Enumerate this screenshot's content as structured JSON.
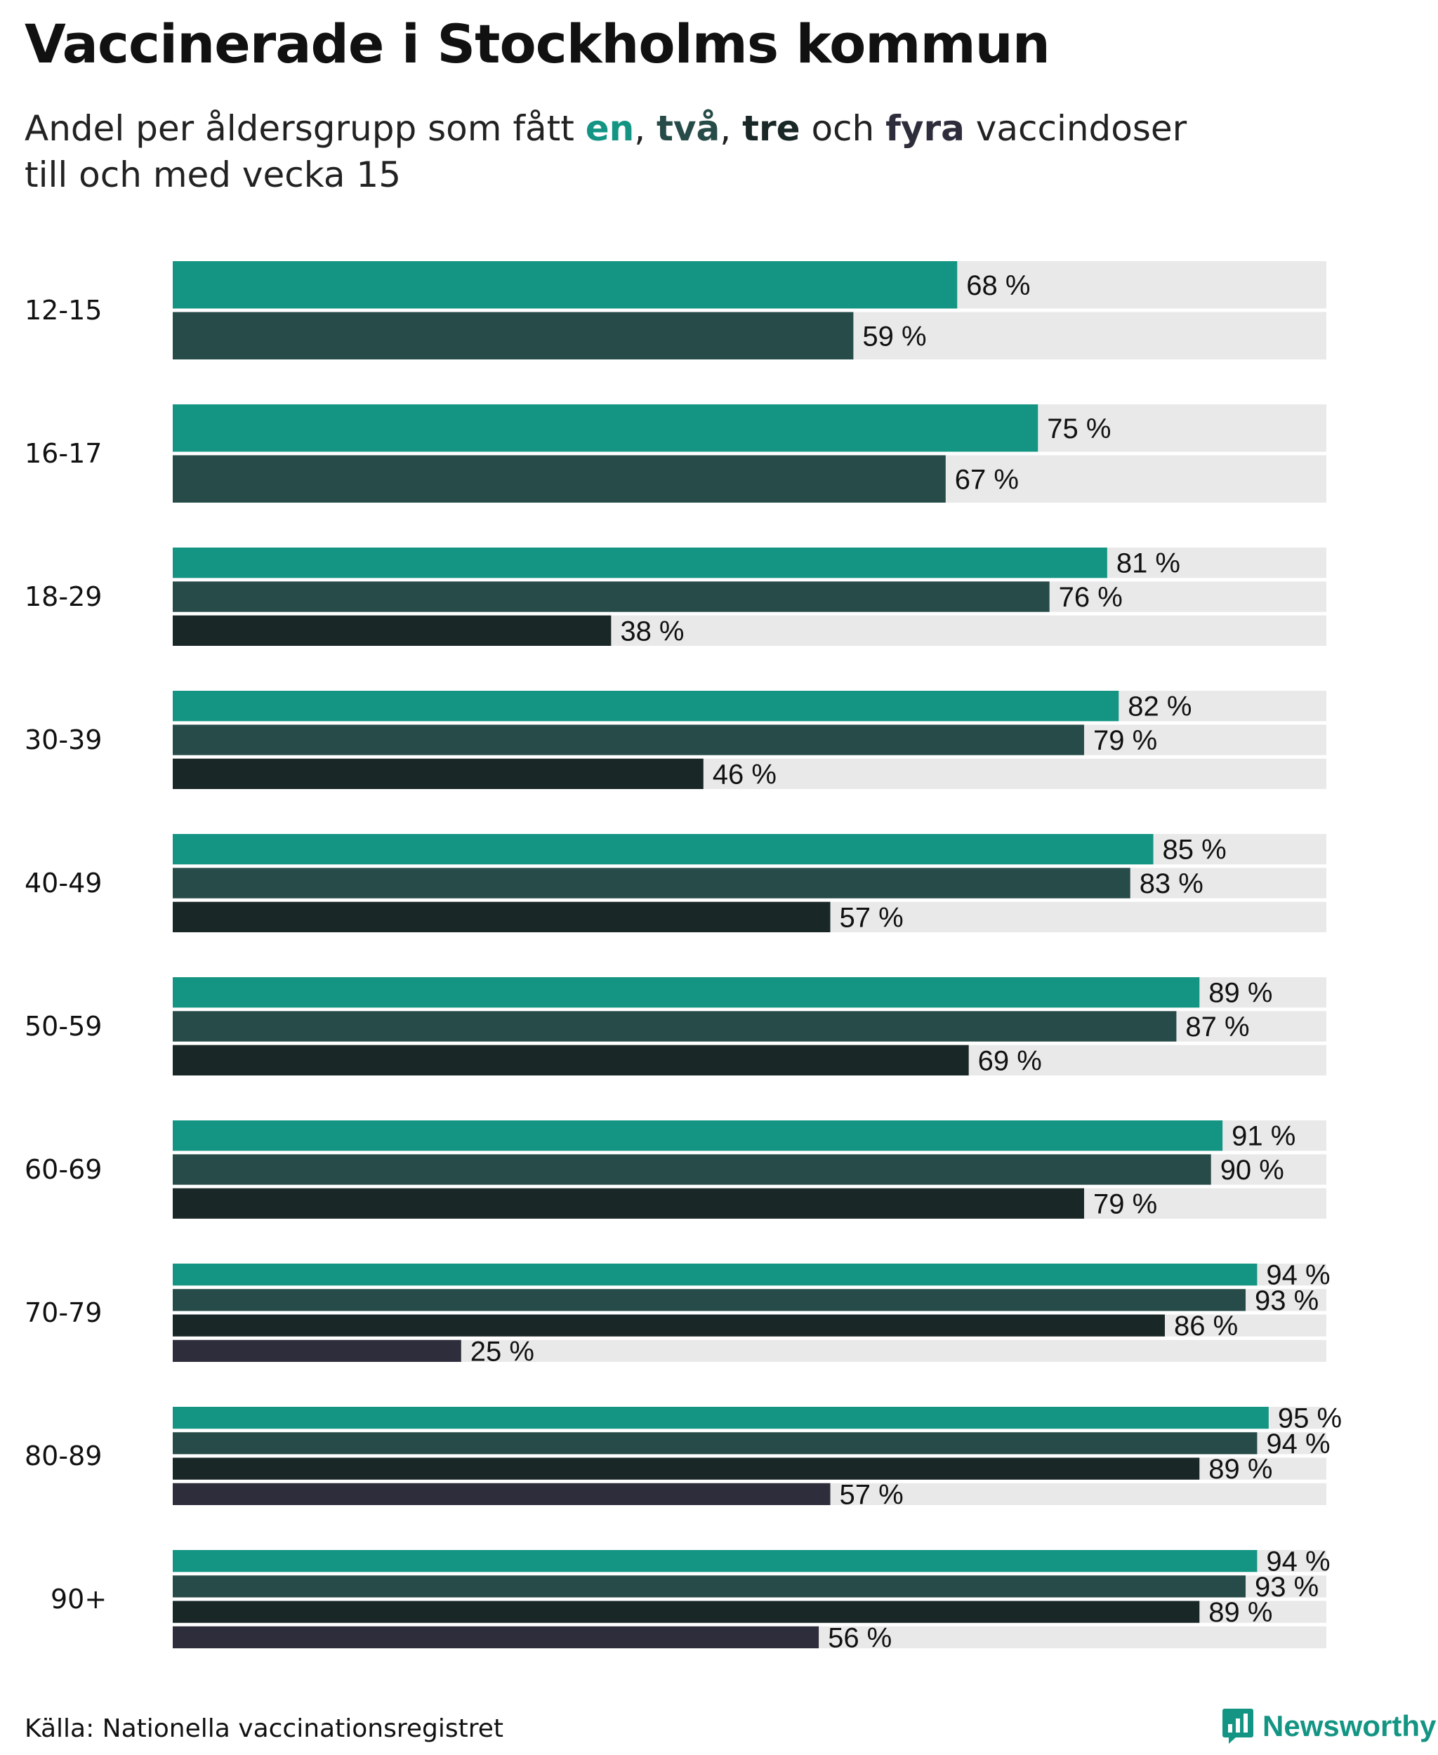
{
  "title": "Vaccinerade i Stockholms kommun",
  "subtitle": {
    "prefix": "Andel per åldersgrupp som fått ",
    "one": "en",
    "sep1": ", ",
    "two": "två",
    "sep2": ", ",
    "three": "tre",
    "mid": " och ",
    "four": "fyra",
    "suffix": " vaccindoser",
    "line2": "till och med vecka 15"
  },
  "colors": {
    "dose1": "#149584",
    "dose2": "#264b48",
    "dose3": "#192726",
    "dose4": "#2e2d3b",
    "track": "#e9e9e9",
    "brand": "#149584"
  },
  "chart_data": {
    "type": "bar",
    "orientation": "horizontal",
    "title": "Vaccinerade i Stockholms kommun",
    "xlim": [
      0,
      100
    ],
    "unit": "%",
    "series": [
      {
        "name": "en",
        "values": [
          68,
          75,
          81,
          82,
          85,
          89,
          91,
          94,
          95,
          94
        ]
      },
      {
        "name": "två",
        "values": [
          59,
          67,
          76,
          79,
          83,
          87,
          90,
          93,
          94,
          93
        ]
      },
      {
        "name": "tre",
        "values": [
          null,
          null,
          38,
          46,
          57,
          69,
          79,
          86,
          89,
          89
        ]
      },
      {
        "name": "fyra",
        "values": [
          null,
          null,
          null,
          null,
          null,
          null,
          null,
          25,
          57,
          56
        ]
      }
    ],
    "categories": [
      "12-15",
      "16-17",
      "18-29",
      "30-39",
      "40-49",
      "50-59",
      "60-69",
      "70-79",
      "80-89",
      "90+"
    ]
  },
  "source": "Källa: Nationella vaccinationsregistret",
  "logo": {
    "text": "Newsworthy",
    "icon": "bar-chart-icon"
  }
}
